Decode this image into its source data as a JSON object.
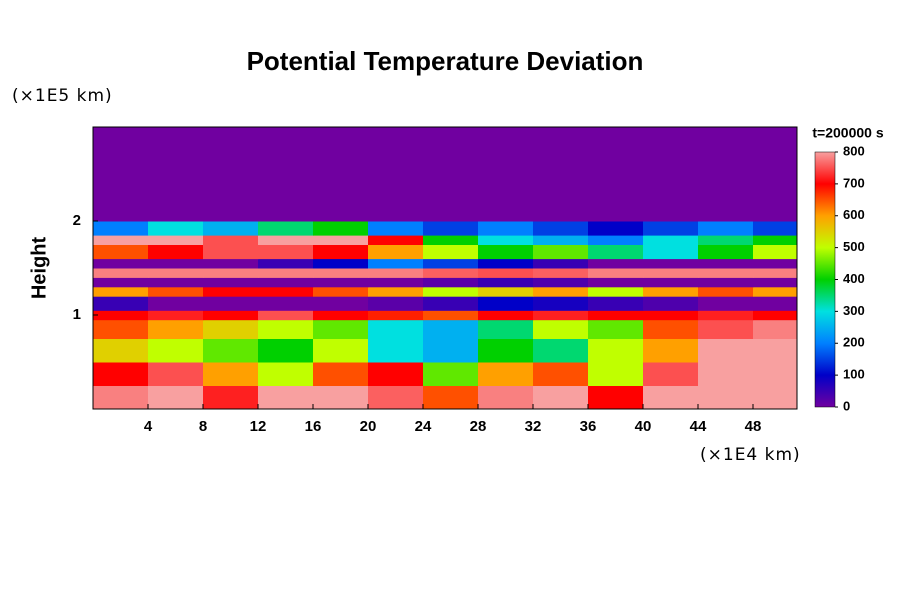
{
  "chart_data": {
    "type": "heatmap",
    "title": "Potential Temperature Deviation",
    "y_label": "Height",
    "y_unit": "(×1E5 km)",
    "x_unit": "(×1E4 km)",
    "colorbar_title": "t=200000 s",
    "xlim": [
      0,
      51.2
    ],
    "ylim": [
      0,
      3
    ],
    "xticks": [
      4,
      8,
      12,
      16,
      20,
      24,
      28,
      32,
      36,
      40,
      44,
      48
    ],
    "yticks": [
      1,
      2
    ],
    "x_edges": [
      0,
      4,
      8,
      12,
      16,
      20,
      24,
      28,
      32,
      36,
      40,
      44,
      48,
      51.2
    ],
    "y_edges": [
      0,
      0.25,
      0.5,
      0.75,
      0.95,
      1.05,
      1.2,
      1.3,
      1.4,
      1.5,
      1.6,
      1.75,
      1.85,
      2.0,
      3.0
    ],
    "z": [
      [
        780,
        800,
        720,
        800,
        800,
        760,
        650,
        780,
        800,
        700,
        800,
        800,
        800
      ],
      [
        700,
        750,
        600,
        500,
        650,
        700,
        450,
        600,
        650,
        500,
        750,
        800,
        800
      ],
      [
        550,
        500,
        450,
        400,
        500,
        300,
        250,
        400,
        350,
        500,
        600,
        800,
        800
      ],
      [
        650,
        600,
        550,
        500,
        450,
        300,
        250,
        350,
        500,
        450,
        650,
        750,
        780
      ],
      [
        700,
        720,
        700,
        750,
        700,
        680,
        650,
        700,
        720,
        700,
        700,
        720,
        700
      ],
      [
        50,
        0,
        0,
        0,
        0,
        20,
        50,
        100,
        80,
        50,
        30,
        0,
        0
      ],
      [
        600,
        650,
        700,
        700,
        650,
        600,
        500,
        550,
        600,
        500,
        600,
        650,
        600
      ],
      [
        0,
        0,
        0,
        0,
        0,
        0,
        20,
        50,
        30,
        0,
        0,
        0,
        0
      ],
      [
        780,
        780,
        780,
        780,
        780,
        780,
        760,
        750,
        760,
        780,
        780,
        780,
        780
      ],
      [
        0,
        0,
        0,
        50,
        100,
        200,
        150,
        100,
        50,
        0,
        0,
        0,
        0
      ],
      [
        650,
        700,
        750,
        750,
        700,
        600,
        500,
        400,
        450,
        350,
        300,
        400,
        500
      ],
      [
        800,
        800,
        750,
        800,
        800,
        700,
        400,
        300,
        250,
        200,
        300,
        350,
        400
      ],
      [
        200,
        300,
        250,
        350,
        400,
        200,
        150,
        200,
        150,
        100,
        150,
        200,
        150
      ],
      [
        0,
        0,
        0,
        0,
        0,
        0,
        0,
        0,
        0,
        0,
        0,
        0,
        0
      ]
    ],
    "colorbar_lim": [
      0,
      800
    ],
    "colorbar_ticks": [
      0,
      100,
      200,
      300,
      400,
      500,
      600,
      700,
      800
    ],
    "colorscale": [
      [
        0,
        "#7000a0"
      ],
      [
        100,
        "#0000c8"
      ],
      [
        200,
        "#0080ff"
      ],
      [
        300,
        "#00e0e0"
      ],
      [
        400,
        "#00d000"
      ],
      [
        500,
        "#c0ff00"
      ],
      [
        600,
        "#ffa000"
      ],
      [
        700,
        "#ff0000"
      ],
      [
        800,
        "#f8a0a0"
      ]
    ]
  }
}
